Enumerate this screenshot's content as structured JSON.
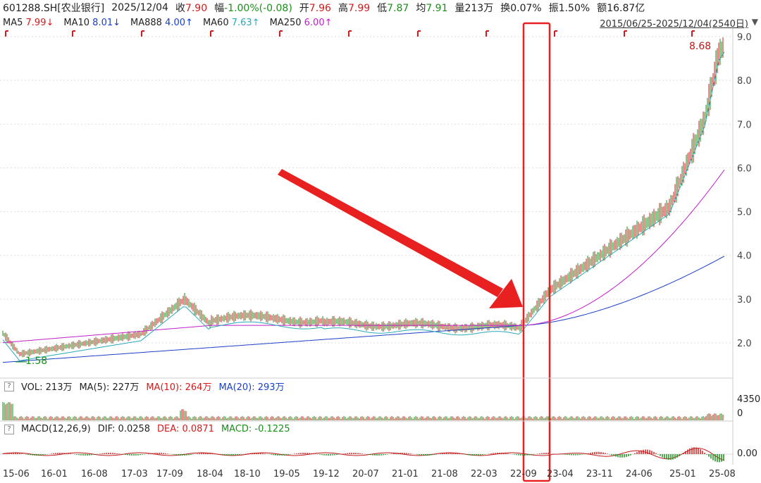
{
  "header": {
    "symbol": "601288.SH[农业银行]",
    "date": "2025/12/04",
    "close_label": "收",
    "close": "7.90",
    "change_label": "幅",
    "change": "-1.00%(-0.08)",
    "open_label": "开",
    "open": "7.96",
    "high_label": "高",
    "high": "7.99",
    "low_label": "低",
    "low": "7.87",
    "avg_label": "均",
    "avg": "7.91",
    "vol_label": "量",
    "vol": "213万",
    "turnover_label": "换",
    "turnover": "0.07%",
    "amplitude_label": "振",
    "amplitude": "1.50%",
    "amount_label": "额",
    "amount": "16.87亿"
  },
  "ma_legend": {
    "ma5": "MA5",
    "ma5_val": "7.99↓",
    "ma10": "MA10",
    "ma10_val": "8.01↓",
    "ma888": "MA888",
    "ma888_val": "4.00↑",
    "ma60": "MA60",
    "ma60_val": "7.63↑",
    "ma250": "MA250",
    "ma250_val": "6.00↑"
  },
  "range": "2015/06/25-2025/12/04(2540日)",
  "price_axis": [
    "9.0",
    "8.0",
    "7.0",
    "6.0",
    "5.0",
    "4.0",
    "3.0",
    "2.0"
  ],
  "annotations": {
    "high": "8.68",
    "low": "1.58"
  },
  "volume_panel": {
    "help": "?",
    "label": "VOL: 213万",
    "ma5": "MA(5): 227万",
    "ma10": "MA(10): 264万",
    "ma20": "MA(20): 293万",
    "axis_top": "4350",
    "axis_zero": "0"
  },
  "macd_panel": {
    "help": "?",
    "label": "MACD(12,26,9)",
    "dif": "DIF: 0.0258",
    "dea": "DEA: 0.0871",
    "macd": "MACD: -0.1225",
    "axis_zero": "0.00"
  },
  "x_axis": [
    "15-06",
    "16-01",
    "16-08",
    "17-03",
    "17-09",
    "18-04",
    "18-10",
    "19-05",
    "19-12",
    "20-07",
    "21-01",
    "21-08",
    "22-03",
    "22-09",
    "23-04",
    "23-11",
    "24-06",
    "25-01",
    "25-08"
  ],
  "colors": {
    "up": "#d01c1c",
    "down": "#1a8f1a",
    "ma60": "#2aa8b8",
    "ma250": "#c020c8",
    "ma888": "#1a3fc8",
    "highlight": "#e82020"
  }
}
